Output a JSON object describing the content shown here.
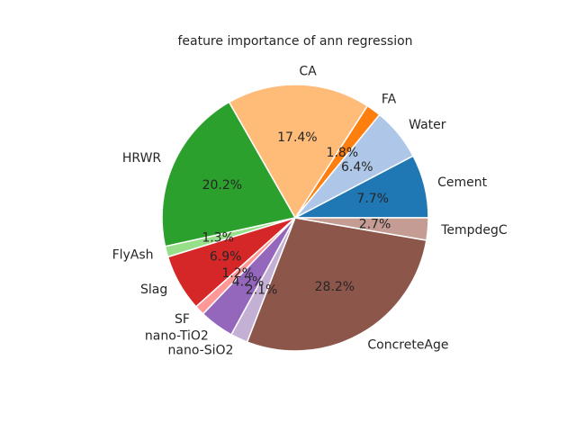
{
  "chart_data": {
    "type": "pie",
    "title": "feature importance of ann regression",
    "start_angle_deg": 0,
    "direction": "counterclockwise",
    "slices": [
      {
        "label": "Cement",
        "value": 7.7,
        "pct_label": "7.7%",
        "color": "#1f77b4"
      },
      {
        "label": "Water",
        "value": 6.4,
        "pct_label": "6.4%",
        "color": "#aec7e8"
      },
      {
        "label": "FA",
        "value": 1.8,
        "pct_label": "1.8%",
        "color": "#ff7f0e"
      },
      {
        "label": "CA",
        "value": 17.4,
        "pct_label": "17.4%",
        "color": "#ffbb78"
      },
      {
        "label": "HRWR",
        "value": 20.2,
        "pct_label": "20.2%",
        "color": "#2ca02c"
      },
      {
        "label": "FlyAsh",
        "value": 1.3,
        "pct_label": "1.3%",
        "color": "#98df8a"
      },
      {
        "label": "Slag",
        "value": 6.9,
        "pct_label": "6.9%",
        "color": "#d62728"
      },
      {
        "label": "SF",
        "value": 1.2,
        "pct_label": "1.2%",
        "color": "#ff9896"
      },
      {
        "label": "nano-TiO2",
        "value": 4.2,
        "pct_label": "4.2%",
        "color": "#9467bd"
      },
      {
        "label": "nano-SiO2",
        "value": 2.1,
        "pct_label": "2.1%",
        "color": "#c5b0d5"
      },
      {
        "label": "ConcreteAge",
        "value": 28.2,
        "pct_label": "28.2%",
        "color": "#8c564b"
      },
      {
        "label": "TempdegC",
        "value": 2.7,
        "pct_label": "2.7%",
        "color": "#c49c94"
      }
    ]
  }
}
